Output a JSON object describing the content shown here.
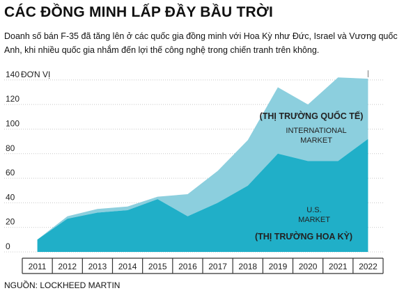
{
  "title": "CÁC ĐỒNG MINH LẤP ĐẦY BẦU TRỜI",
  "subtitle": "Doanh số bán F-35 đã tăng lên ở các quốc gia đồng minh với Hoa Kỳ như Đức, Israel và Vương quốc Anh, khi nhiều quốc gia nhắm đến lợi thế công nghệ trong chiến tranh trên không.",
  "source": "NGUỒN: LOCKHEED MARTIN",
  "colors": {
    "us_market": "#20afc8",
    "international_market": "#8ccfde",
    "axis": "#333333",
    "grid": "#c8c8c8",
    "label": "#222222"
  },
  "chart_data": {
    "type": "area",
    "stacked": true,
    "x": [
      "2011",
      "2012",
      "2013",
      "2014",
      "2015",
      "2016",
      "2017",
      "2018",
      "2019",
      "2020",
      "2021",
      "2022"
    ],
    "y_tick_labels": [
      "0",
      "20",
      "40",
      "60",
      "80",
      "100",
      "120",
      "140"
    ],
    "ylabel": "ĐƠN VỊ",
    "ylim": [
      0,
      145
    ],
    "grid": true,
    "series": [
      {
        "name": "U.S. MARKET",
        "name_vi": "(THỊ TRƯỜNG HOA KỲ)",
        "values": [
          10,
          27,
          32,
          34,
          43,
          29,
          40,
          54,
          80,
          74,
          74,
          92
        ]
      },
      {
        "name": "INTERNATIONAL MARKET",
        "name_vi": "(THỊ TRƯỜNG QUỐC TẾ)",
        "values": [
          0,
          2,
          3,
          3,
          2,
          18,
          26,
          37,
          54,
          46,
          68,
          49
        ]
      }
    ]
  }
}
